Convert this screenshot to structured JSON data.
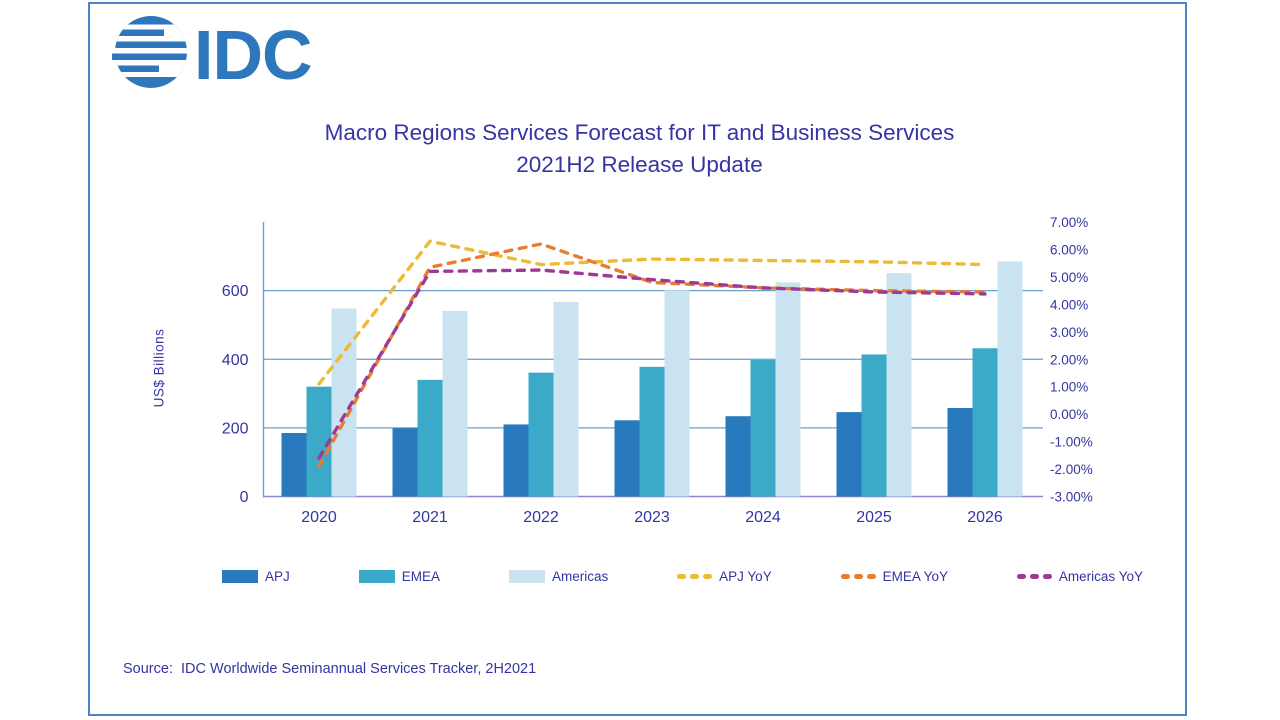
{
  "page": {
    "frame_border_color": "#4a86c4",
    "background": "#ffffff",
    "text_color": "#3434a4"
  },
  "logo": {
    "text": "IDC",
    "color": "#2e77bc"
  },
  "header": {
    "title_line1": "Macro Regions Services Forecast for IT and Business Services",
    "title_line2": "2021H2 Release Update"
  },
  "source_line": "Source:  IDC Worldwide Seminannual Services Tracker, 2H2021",
  "chart_data": {
    "type": "bar",
    "subtype": "clustered-bar-with-dashed-lines-dual-axis",
    "title": "Macro Regions Services Forecast for IT and Business Services",
    "subtitle": "2021H2 Release Update",
    "categories": [
      "2020",
      "2021",
      "2022",
      "2023",
      "2024",
      "2025",
      "2026"
    ],
    "bar_series": [
      {
        "name": "APJ",
        "color": "#2979be",
        "values": [
          185,
          199,
          210,
          222,
          234,
          246,
          258
        ]
      },
      {
        "name": "EMEA",
        "color": "#3aaac8",
        "values": [
          320,
          340,
          361,
          378,
          398,
          414,
          432
        ]
      },
      {
        "name": "Americas",
        "color": "#c9e4f0",
        "values": [
          548,
          541,
          567,
          601,
          624,
          651,
          685
        ]
      }
    ],
    "line_series": [
      {
        "name": "APJ YoY",
        "color": "#ecba35",
        "values": [
          1.1,
          6.3,
          5.45,
          5.65,
          5.6,
          5.55,
          5.45
        ]
      },
      {
        "name": "EMEA YoY",
        "color": "#e87d2e",
        "values": [
          -1.9,
          5.35,
          6.2,
          4.8,
          4.6,
          4.5,
          4.45
        ]
      },
      {
        "name": "Americas YoY",
        "color": "#9c3a96",
        "values": [
          -1.6,
          5.2,
          5.25,
          4.9,
          4.6,
          4.45,
          4.38
        ]
      }
    ],
    "left_axis": {
      "label": "US$  Billions",
      "ticks": [
        0,
        200,
        400,
        600
      ],
      "min": 0,
      "max": 800
    },
    "right_axis": {
      "tick_labels": [
        "7.00%",
        "6.00%",
        "5.00%",
        "4.00%",
        "3.00%",
        "2.00%",
        "1.00%",
        "0.00%",
        "-1.00%",
        "-2.00%",
        "-3.00%"
      ],
      "min": -3,
      "max": 7
    },
    "gridlines_at": [
      200,
      400,
      600
    ],
    "grid_color": "#6b9fd0",
    "baseline_color": "#8987ce",
    "legend_position": "bottom",
    "grid": "horizontal-only"
  }
}
